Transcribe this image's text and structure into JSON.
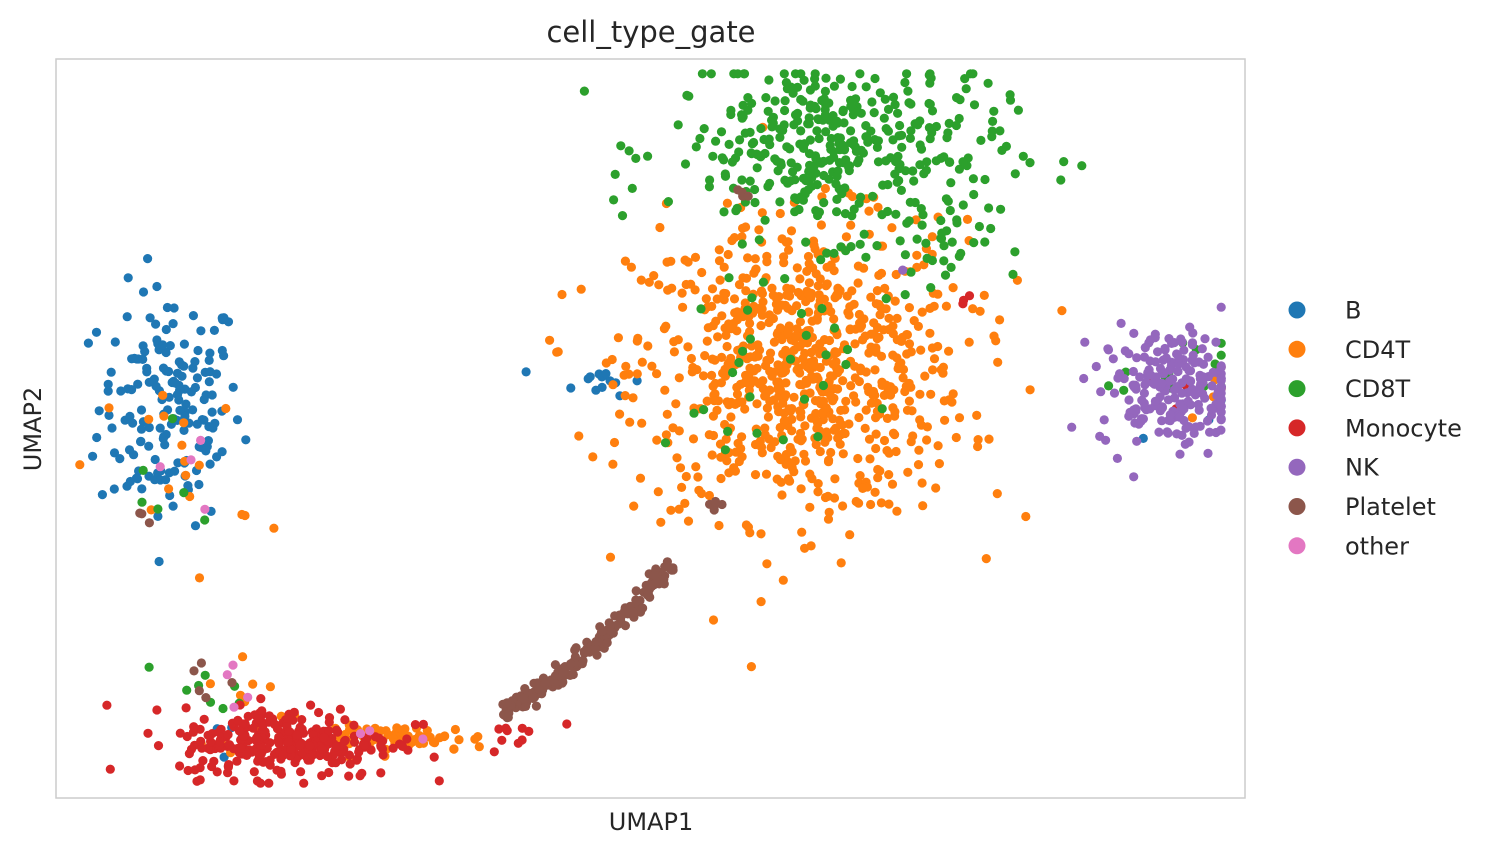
{
  "chart_data": {
    "type": "scatter",
    "title": "cell_type_gate",
    "xlabel": "UMAP1",
    "ylabel": "UMAP2",
    "xlim": [
      0,
      100
    ],
    "ylim": [
      0,
      100
    ],
    "ticks": "none",
    "grid": false,
    "legend_position": "right",
    "series": [
      {
        "name": "B",
        "color": "#1f77b4",
        "clusters": [
          {
            "n": 170,
            "c": [
              9.6,
              53.0
            ],
            "s": [
              3.0,
              8.0
            ]
          },
          {
            "n": 14,
            "c": [
              45.8,
              56.5
            ],
            "s": [
              1.8,
              1.0
            ]
          },
          {
            "n": 4,
            "c": [
              93.5,
              55.0
            ],
            "s": [
              2.0,
              3.0
            ]
          },
          {
            "n": 6,
            "c": [
              16.0,
              9.0
            ],
            "s": [
              1.8,
              1.5
            ]
          }
        ]
      },
      {
        "name": "CD4T",
        "color": "#ff7f0e",
        "clusters": [
          {
            "n": 820,
            "c": [
              62.5,
              58.0
            ],
            "s": [
              7.0,
              10.0
            ]
          },
          {
            "n": 60,
            "c": [
              29.5,
              8.0
            ],
            "s": [
              3.5,
              0.9
            ]
          },
          {
            "n": 18,
            "c": [
              10.5,
              44.0
            ],
            "s": [
              3.0,
              7.0
            ]
          },
          {
            "n": 15,
            "c": [
              16.5,
              12.5
            ],
            "s": [
              2.0,
              3.0
            ]
          },
          {
            "n": 4,
            "c": [
              94.5,
              54.5
            ],
            "s": [
              2.5,
              2.0
            ]
          }
        ]
      },
      {
        "name": "CD8T",
        "color": "#2ca02c",
        "clusters": [
          {
            "n": 380,
            "c": [
              65.5,
              88.0
            ],
            "s": [
              7.0,
              6.0
            ]
          },
          {
            "n": 35,
            "c": [
              73.5,
              75.0
            ],
            "s": [
              2.5,
              4.0
            ]
          },
          {
            "n": 30,
            "c": [
              59.0,
              56.0
            ],
            "s": [
              4.0,
              8.0
            ]
          },
          {
            "n": 15,
            "c": [
              94.5,
              56.5
            ],
            "s": [
              2.5,
              2.5
            ]
          },
          {
            "n": 8,
            "c": [
              13.0,
              14.5
            ],
            "s": [
              2.0,
              2.0
            ]
          },
          {
            "n": 6,
            "c": [
              9.5,
              44.5
            ],
            "s": [
              2.0,
              5.0
            ]
          }
        ]
      },
      {
        "name": "Monocyte",
        "color": "#d62728",
        "clusters": [
          {
            "n": 290,
            "c": [
              19.5,
              7.5
            ],
            "s": [
              4.5,
              2.4
            ]
          },
          {
            "n": 12,
            "c": [
              39.0,
              9.5
            ],
            "s": [
              3.5,
              1.2
            ]
          },
          {
            "n": 3,
            "c": [
              76.5,
              67.5
            ],
            "s": [
              0.3,
              0.3
            ]
          },
          {
            "n": 5,
            "c": [
              94.5,
              56.5
            ],
            "s": [
              3.0,
              3.0
            ]
          }
        ]
      },
      {
        "name": "NK",
        "color": "#9467bd",
        "clusters": [
          {
            "n": 210,
            "c": [
              93.8,
              55.5
            ],
            "s": [
              3.0,
              4.0
            ]
          },
          {
            "n": 1,
            "c": [
              71.0,
              71.5
            ],
            "s": [
              0.1,
              0.1
            ]
          }
        ]
      },
      {
        "name": "Platelet",
        "color": "#8c564b",
        "clusters": [
          {
            "arc": true,
            "n": 220,
            "from": [
              37.5,
              11.5
            ],
            "to": [
              52.0,
              32.0
            ],
            "spread": 0.6
          },
          {
            "n": 6,
            "c": [
              55.5,
              40.0
            ],
            "s": [
              0.4,
              1.2
            ]
          },
          {
            "n": 4,
            "c": [
              57.5,
              83.0
            ],
            "s": [
              0.5,
              2.0
            ]
          },
          {
            "n": 5,
            "c": [
              12.5,
              15.0
            ],
            "s": [
              1.5,
              1.5
            ]
          },
          {
            "n": 3,
            "c": [
              7.5,
              38.0
            ],
            "s": [
              0.5,
              0.5
            ]
          }
        ]
      },
      {
        "name": "other",
        "color": "#e377c2",
        "clusters": [
          {
            "n": 4,
            "c": [
              10.0,
              44.0
            ],
            "s": [
              1.5,
              3.0
            ]
          },
          {
            "n": 4,
            "c": [
              14.5,
              14.0
            ],
            "s": [
              1.5,
              2.0
            ]
          },
          {
            "n": 3,
            "c": [
              30.0,
              9.0
            ],
            "s": [
              2.0,
              0.6
            ]
          }
        ]
      }
    ]
  }
}
